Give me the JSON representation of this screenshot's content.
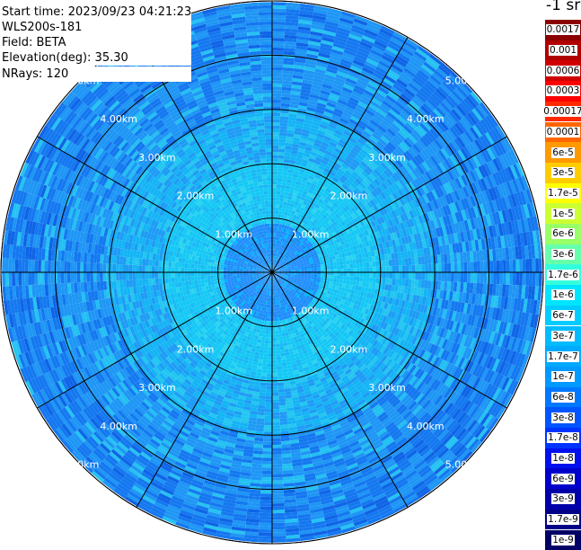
{
  "info": {
    "start_time": "Start time: 2023/09/23 04:21:23",
    "instrument": "WLS200s-181",
    "field": "Field: BETA",
    "elevation": "Elevation(deg): 35.30",
    "nrays": "NRays: 120"
  },
  "colorbar": {
    "unit": "-1 sr",
    "labels": [
      "0.0017",
      "0.001",
      "0.0006",
      "0.0003",
      "0.00017",
      "0.0001",
      "6e-5",
      "3e-5",
      "1.7e-5",
      "1e-5",
      "6e-6",
      "3e-6",
      "1.7e-6",
      "1e-6",
      "6e-7",
      "3e-7",
      "1.7e-7",
      "1e-7",
      "6e-8",
      "3e-8",
      "1.7e-8",
      "1e-8",
      "6e-9",
      "3e-9",
      "1.7e-9",
      "1e-9"
    ],
    "colors": [
      "#8b0000",
      "#b00000",
      "#d00000",
      "#ff0000",
      "#ff2a00",
      "#ff6600",
      "#ff9900",
      "#ffcc00",
      "#ffff00",
      "#ccff33",
      "#99ff66",
      "#66ffaa",
      "#33ffdd",
      "#00e5ff",
      "#00ccff",
      "#00bbff",
      "#00aaff",
      "#0099ff",
      "#0077ff",
      "#0055ff",
      "#0033ff",
      "#0011ee",
      "#0000cc",
      "#0000aa",
      "#000088",
      "#000066"
    ]
  },
  "chart_data": {
    "type": "ppi",
    "title": "",
    "field": "BETA",
    "unit": "-1 sr",
    "rays": 120,
    "range_rings_km": [
      1,
      2,
      3,
      4,
      5
    ],
    "range_labels": [
      "1.00km",
      "2.00km",
      "3.00km",
      "4.00km",
      "5.00km"
    ],
    "azimuth_spokes_deg": [
      0,
      30,
      60,
      90,
      120,
      150,
      180,
      210,
      240,
      270,
      300,
      330
    ],
    "max_range_km": 5.0,
    "colorbar_levels": [
      0.0017,
      0.001,
      0.0006,
      0.0003,
      0.00017,
      0.0001,
      6e-05,
      3e-05,
      1.7e-05,
      1e-05,
      6e-06,
      3e-06,
      1.7e-06,
      1e-06,
      6e-07,
      3e-07,
      1.7e-07,
      1e-07,
      6e-08,
      3e-08,
      1.7e-08,
      1e-08,
      6e-09,
      3e-09,
      1.7e-09,
      1e-09
    ],
    "grid": true
  }
}
